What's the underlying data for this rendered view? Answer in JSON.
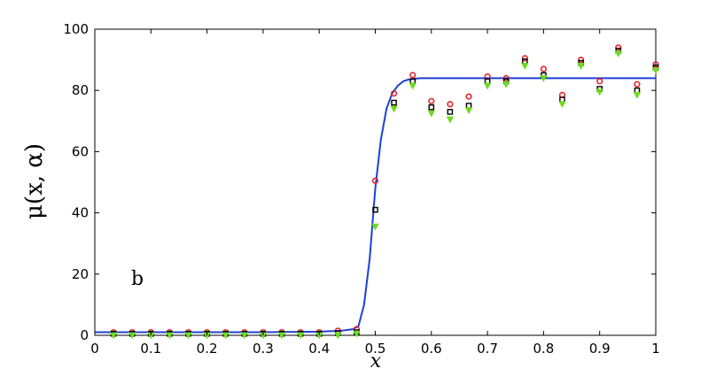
{
  "chart_data": {
    "type": "scatter",
    "xlabel": "x",
    "ylabel": "μ(x, α)",
    "annotation": "b",
    "xlim": [
      0,
      1
    ],
    "ylim": [
      0,
      100
    ],
    "xticks": [
      0,
      0.1,
      0.2,
      0.3,
      0.4,
      0.5,
      0.6,
      0.7,
      0.8,
      0.9,
      1
    ],
    "xtick_labels": [
      "0",
      "0.1",
      "0.2",
      "0.3",
      "0.4",
      "0.5",
      "0.6",
      "0.7",
      "0.8",
      "0.9",
      "1"
    ],
    "yticks": [
      0,
      20,
      40,
      60,
      80,
      100
    ],
    "ytick_labels": [
      "0",
      "20",
      "40",
      "60",
      "80",
      "100"
    ],
    "grid": false,
    "curve": {
      "color": "#1f3fd8",
      "x": [
        0,
        0.1,
        0.2,
        0.3,
        0.4,
        0.44,
        0.46,
        0.47,
        0.48,
        0.49,
        0.5,
        0.51,
        0.52,
        0.53,
        0.54,
        0.55,
        0.56,
        0.58,
        0.6,
        0.7,
        0.8,
        0.9,
        1.0
      ],
      "y": [
        1,
        1,
        1,
        1,
        1.2,
        1.5,
        2,
        3,
        10,
        25,
        48,
        64,
        74,
        79,
        81.5,
        83,
        83.6,
        84,
        84,
        84,
        84,
        84,
        84
      ]
    },
    "x": [
      0.0333,
      0.0667,
      0.1,
      0.1333,
      0.1667,
      0.2,
      0.2333,
      0.2667,
      0.3,
      0.3333,
      0.3667,
      0.4,
      0.4333,
      0.4667,
      0.5,
      0.5333,
      0.5667,
      0.6,
      0.6333,
      0.6667,
      0.7,
      0.7333,
      0.7667,
      0.8,
      0.8333,
      0.8667,
      0.9,
      0.9333,
      0.9667,
      1.0
    ],
    "series": [
      {
        "marker": "circle",
        "color": "#e8202a",
        "values": [
          1,
          1,
          1,
          1,
          1,
          1,
          1,
          1,
          1,
          1,
          1,
          1,
          1.5,
          2,
          50.5,
          79,
          85,
          76.5,
          75.5,
          78,
          84.5,
          84,
          90.5,
          87,
          78.5,
          90,
          83,
          94,
          82,
          88.5
        ]
      },
      {
        "marker": "square",
        "color": "#000000",
        "values": [
          0.5,
          0.5,
          0.5,
          0.5,
          0.5,
          0.5,
          0.5,
          0.5,
          0.5,
          0.5,
          0.5,
          0.5,
          0.7,
          1,
          41,
          76,
          83,
          74.5,
          73,
          75,
          83,
          83,
          89.5,
          85,
          77,
          89,
          80.5,
          93,
          80,
          87.5
        ]
      },
      {
        "marker": "triangle-down",
        "color": "#6adc1c",
        "values": [
          0,
          0,
          0,
          0,
          0,
          0,
          0,
          0,
          0,
          0,
          0,
          0,
          0,
          0.5,
          35.5,
          74,
          81.5,
          72.5,
          70.5,
          73.5,
          81.5,
          82,
          88,
          84,
          75.5,
          88,
          79.5,
          92,
          78.5,
          86.5
        ]
      }
    ]
  }
}
